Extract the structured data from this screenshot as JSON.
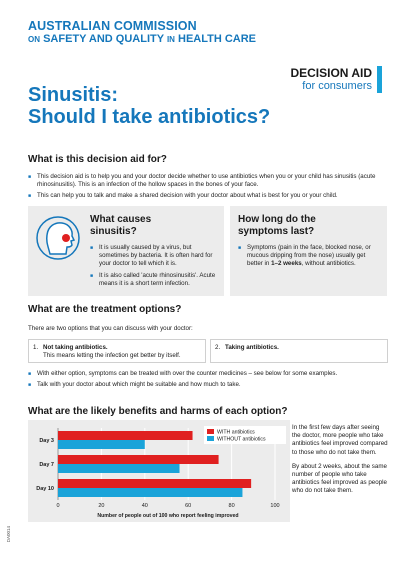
{
  "header": {
    "org_line1": "AUSTRALIAN COMMISSION",
    "org_line2_on": "ON",
    "org_line2_main": "SAFETY AND QUALITY",
    "org_line2_in": "IN",
    "org_line2_end": "HEALTH CARE",
    "badge_title": "DECISION AID",
    "badge_sub": "for consumers",
    "title_line1": "Sinusitis:",
    "title_line2": "Should I take antibiotics?"
  },
  "section_what": {
    "heading": "What is this decision aid for?",
    "bullet1": "This decision aid is to help you and your doctor decide whether to use antibiotics when you or your child has sinusitis (acute rhinosinusitis). This is an infection of the hollow spaces in the bones of your face.",
    "bullet2": "This can help you to talk and make a shared decision with your doctor about what is best for you or your child."
  },
  "box_causes": {
    "heading_line1": "What causes",
    "heading_line2": "sinusitis?",
    "bullet1": "It is usually caused by a virus, but sometimes by bacteria. It is often hard for your doctor to tell which it is.",
    "bullet2": "It is also called 'acute rhinosinusitis'. Acute means it is a short term infection."
  },
  "box_duration": {
    "heading_line1": "How long do the",
    "heading_line2": "symptoms last?",
    "bullet_start": "Symptoms (pain in the face, blocked nose, or mucous dripping from the nose) usually get better in ",
    "bullet_bold": "1–2 weeks",
    "bullet_end": ", without antibiotics."
  },
  "section_treatment": {
    "heading": "What are the treatment options?",
    "intro": "There are two options that you can discuss with your doctor:",
    "option1_num": "1.",
    "option1_title": "Not taking antibiotics.",
    "option1_desc": "This means letting the infection get better by itself.",
    "option2_num": "2.",
    "option2_title": "Taking antibiotics.",
    "bullet1": "With either option, symptoms can be treated with over the counter medicines – see below for some examples.",
    "bullet2": "Talk with your doctor about which might be suitable and how much to take."
  },
  "section_benefits": {
    "heading": "What are the likely benefits and harms of each option?",
    "side_text1": "In the first few days after seeing the doctor, more people who take antibiotics feel improved compared to those who do not take them.",
    "side_text2": "By about 2 weeks, about the same number of people who take antibiotics feel improved as people who do not take them."
  },
  "chart_data": {
    "type": "bar",
    "orientation": "horizontal",
    "categories": [
      "Day 3",
      "Day 7",
      "Day 10"
    ],
    "series": [
      {
        "name": "WITH antibiotics",
        "values": [
          62,
          74,
          89
        ],
        "color": "#e02020"
      },
      {
        "name": "WITHOUT antibiotics",
        "values": [
          40,
          56,
          85
        ],
        "color": "#1aa3d9"
      }
    ],
    "xlabel": "Number of people out of 100 who report feeling improved",
    "xlim": [
      0,
      100
    ],
    "xticks": [
      0,
      20,
      40,
      60,
      80,
      100
    ],
    "legend": "top-right",
    "grid": true
  },
  "footer": {
    "code": "DA0014"
  },
  "colors": {
    "brand_blue": "#1577bb",
    "accent_cyan": "#1aa3d9",
    "accent_red": "#e02020"
  },
  "icons": {
    "head": "head-profile-icon"
  }
}
